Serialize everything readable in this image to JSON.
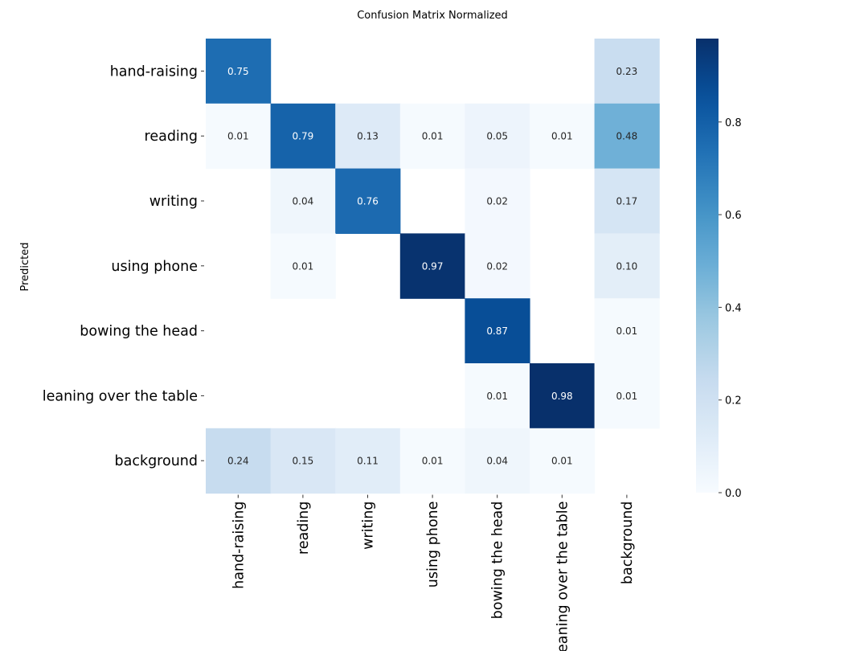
{
  "chart_data": {
    "type": "heatmap",
    "title": "Confusion Matrix Normalized",
    "ylabel": "Predicted",
    "xlabel": "",
    "row_labels": [
      "hand-raising",
      "reading",
      "writing",
      "using phone",
      "bowing the head",
      "leaning over the table",
      "background"
    ],
    "col_labels": [
      "hand-raising",
      "reading",
      "writing",
      "using phone",
      "bowing the head",
      "leaning over the table",
      "background"
    ],
    "values": [
      [
        0.75,
        null,
        null,
        null,
        null,
        null,
        0.23
      ],
      [
        0.01,
        0.79,
        0.13,
        0.01,
        0.05,
        0.01,
        0.48
      ],
      [
        null,
        0.04,
        0.76,
        null,
        0.02,
        null,
        0.17
      ],
      [
        null,
        0.01,
        null,
        0.97,
        0.02,
        null,
        0.1
      ],
      [
        null,
        null,
        null,
        null,
        0.87,
        null,
        0.01
      ],
      [
        null,
        null,
        null,
        null,
        0.01,
        0.98,
        0.01
      ],
      [
        0.24,
        0.15,
        0.11,
        0.01,
        0.04,
        0.01,
        null
      ]
    ],
    "colorbar": {
      "colormap": "Blues",
      "vmin": 0.0,
      "vmax": 0.98,
      "ticks": [
        0.0,
        0.2,
        0.4,
        0.6,
        0.8
      ],
      "tick_labels": [
        "0.0",
        "0.2",
        "0.4",
        "0.6",
        "0.8"
      ]
    }
  }
}
